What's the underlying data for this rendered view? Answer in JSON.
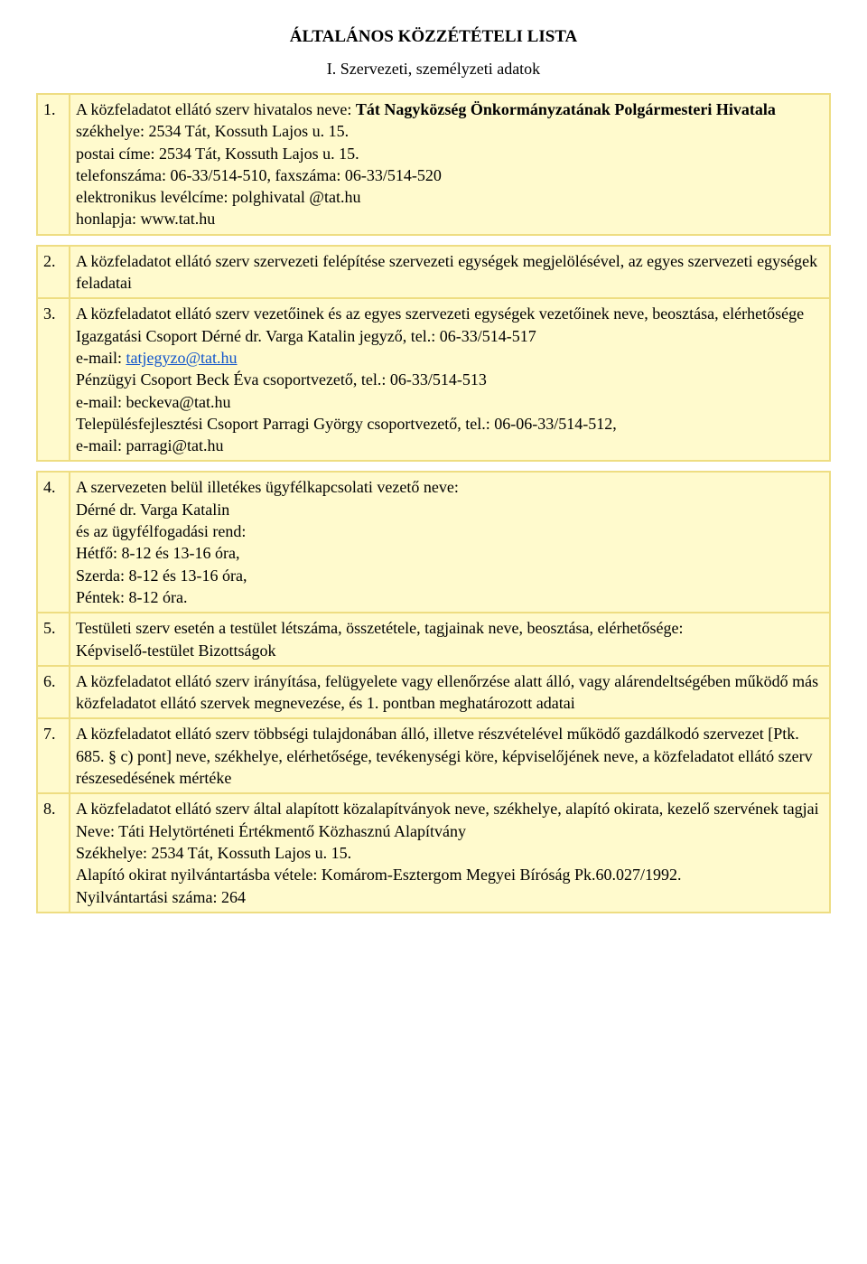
{
  "title": "ÁLTALÁNOS KÖZZÉTÉTELI LISTA",
  "subtitle": "I. Szervezeti, személyzeti adatok",
  "colors": {
    "cell_bg": "#fffacd",
    "table_bg": "#eedd82",
    "link_color": "#1155cc",
    "text_color": "#000000",
    "page_bg": "#ffffff"
  },
  "rows": [
    {
      "num": "1.",
      "lines": [
        {
          "runs": [
            {
              "t": "A közfeladatot ellátó szerv hivatalos neve: "
            },
            {
              "t": "Tát Nagyközség Önkormányzatának Polgármesteri Hivatala",
              "bold": true
            }
          ]
        },
        {
          "runs": [
            {
              "t": "székhelye: 2534 Tát, Kossuth Lajos u. 15."
            }
          ]
        },
        {
          "runs": [
            {
              "t": "postai címe: 2534 Tát, Kossuth Lajos u. 15."
            }
          ]
        },
        {
          "runs": [
            {
              "t": "telefonszáma: 06-33/514-510, faxszáma: 06-33/514-520"
            }
          ]
        },
        {
          "runs": [
            {
              "t": "elektronikus levélcíme: polghivatal @tat.hu"
            }
          ]
        },
        {
          "runs": [
            {
              "t": "honlapja: www.tat.hu"
            }
          ]
        }
      ]
    },
    {
      "num": "2.",
      "lines": [
        {
          "runs": [
            {
              "t": "A közfeladatot ellátó szerv szervezeti felépítése szervezeti egységek megjelölésével, az egyes szervezeti egységek feladatai"
            }
          ]
        }
      ]
    },
    {
      "num": "3.",
      "lines": [
        {
          "runs": [
            {
              "t": "A közfeladatot ellátó szerv vezetőinek és az egyes szervezeti egységek vezetőinek neve, beosztása, elérhetősége"
            }
          ]
        },
        {
          "runs": [
            {
              "t": "Igazgatási Csoport  Dérné dr. Varga Katalin  jegyző, tel.: 06-33/514-517"
            }
          ]
        },
        {
          "runs": [
            {
              "t": "e-mail: "
            },
            {
              "t": "tatjegyzo@tat.hu",
              "link": true
            }
          ]
        },
        {
          "runs": [
            {
              "t": "Pénzügyi Csoport Beck Éva csoportvezető, tel.: 06-33/514-513"
            }
          ]
        },
        {
          "runs": [
            {
              "t": "e-mail: beckeva@tat.hu"
            }
          ]
        },
        {
          "runs": [
            {
              "t": "Településfejlesztési Csoport "
            },
            {
              "t": "Parragi György csoportvezető, tel.: 06-06-33/514-512,"
            }
          ]
        },
        {
          "runs": [
            {
              "t": "e-mail: parragi@tat.hu"
            }
          ]
        }
      ]
    },
    {
      "num": "4.",
      "lines": [
        {
          "runs": [
            {
              "t": "A szervezeten belül illetékes ügyfélkapcsolati vezető neve:"
            }
          ]
        },
        {
          "runs": [
            {
              "t": "Dérné dr. Varga Katalin"
            }
          ]
        },
        {
          "runs": [
            {
              "t": "és az ügyfélfogadási rend:"
            }
          ]
        },
        {
          "runs": [
            {
              "t": "Hétfő: 8-12 és 13-16 óra,"
            }
          ]
        },
        {
          "runs": [
            {
              "t": "Szerda: 8-12 és 13-16 óra,"
            }
          ]
        },
        {
          "runs": [
            {
              "t": "Péntek: 8-12 óra."
            }
          ]
        }
      ]
    },
    {
      "num": "5.",
      "lines": [
        {
          "runs": [
            {
              "t": "Testületi szerv esetén a testület létszáma, összetétele, tagjainak neve, beosztása, elérhetősége:"
            }
          ]
        },
        {
          "runs": [
            {
              "t": "Képviselő-testület Bizottságok"
            }
          ]
        }
      ]
    },
    {
      "num": "6.",
      "lines": [
        {
          "runs": [
            {
              "t": "A közfeladatot ellátó szerv irányítása, felügyelete vagy ellenőrzése alatt álló, vagy alárendeltségében működő más közfeladatot ellátó szervek megnevezése, és 1. pontban meghatározott adatai"
            }
          ]
        }
      ]
    },
    {
      "num": "7.",
      "lines": [
        {
          "runs": [
            {
              "t": "A közfeladatot ellátó szerv többségi tulajdonában álló, illetve részvételével működő gazdálkodó szervezet [Ptk. 685. § c) pont] neve, székhelye, elérhetősége, tevékenységi köre, képviselőjének neve, a közfeladatot ellátó szerv részesedésének mértéke"
            }
          ]
        }
      ]
    },
    {
      "num": "8.",
      "lines": [
        {
          "runs": [
            {
              "t": "A közfeladatot ellátó szerv által alapított közalapítványok neve, székhelye, alapító okirata, kezelő szervének tagjai"
            }
          ]
        },
        {
          "runs": [
            {
              "t": "Neve: Táti Helytörténeti Értékmentő Közhasznú Alapítvány"
            }
          ]
        },
        {
          "runs": [
            {
              "t": "Székhelye: 2534 Tát, Kossuth Lajos u. 15."
            }
          ]
        },
        {
          "runs": [
            {
              "t": "Alapító okirat nyilvántartásba vétele: Komárom-Esztergom Megyei Bíróság Pk.60.027/1992."
            }
          ]
        },
        {
          "runs": [
            {
              "t": "Nyilvántartási száma: 264"
            }
          ]
        }
      ]
    }
  ],
  "group_breaks_after": [
    0,
    2
  ]
}
